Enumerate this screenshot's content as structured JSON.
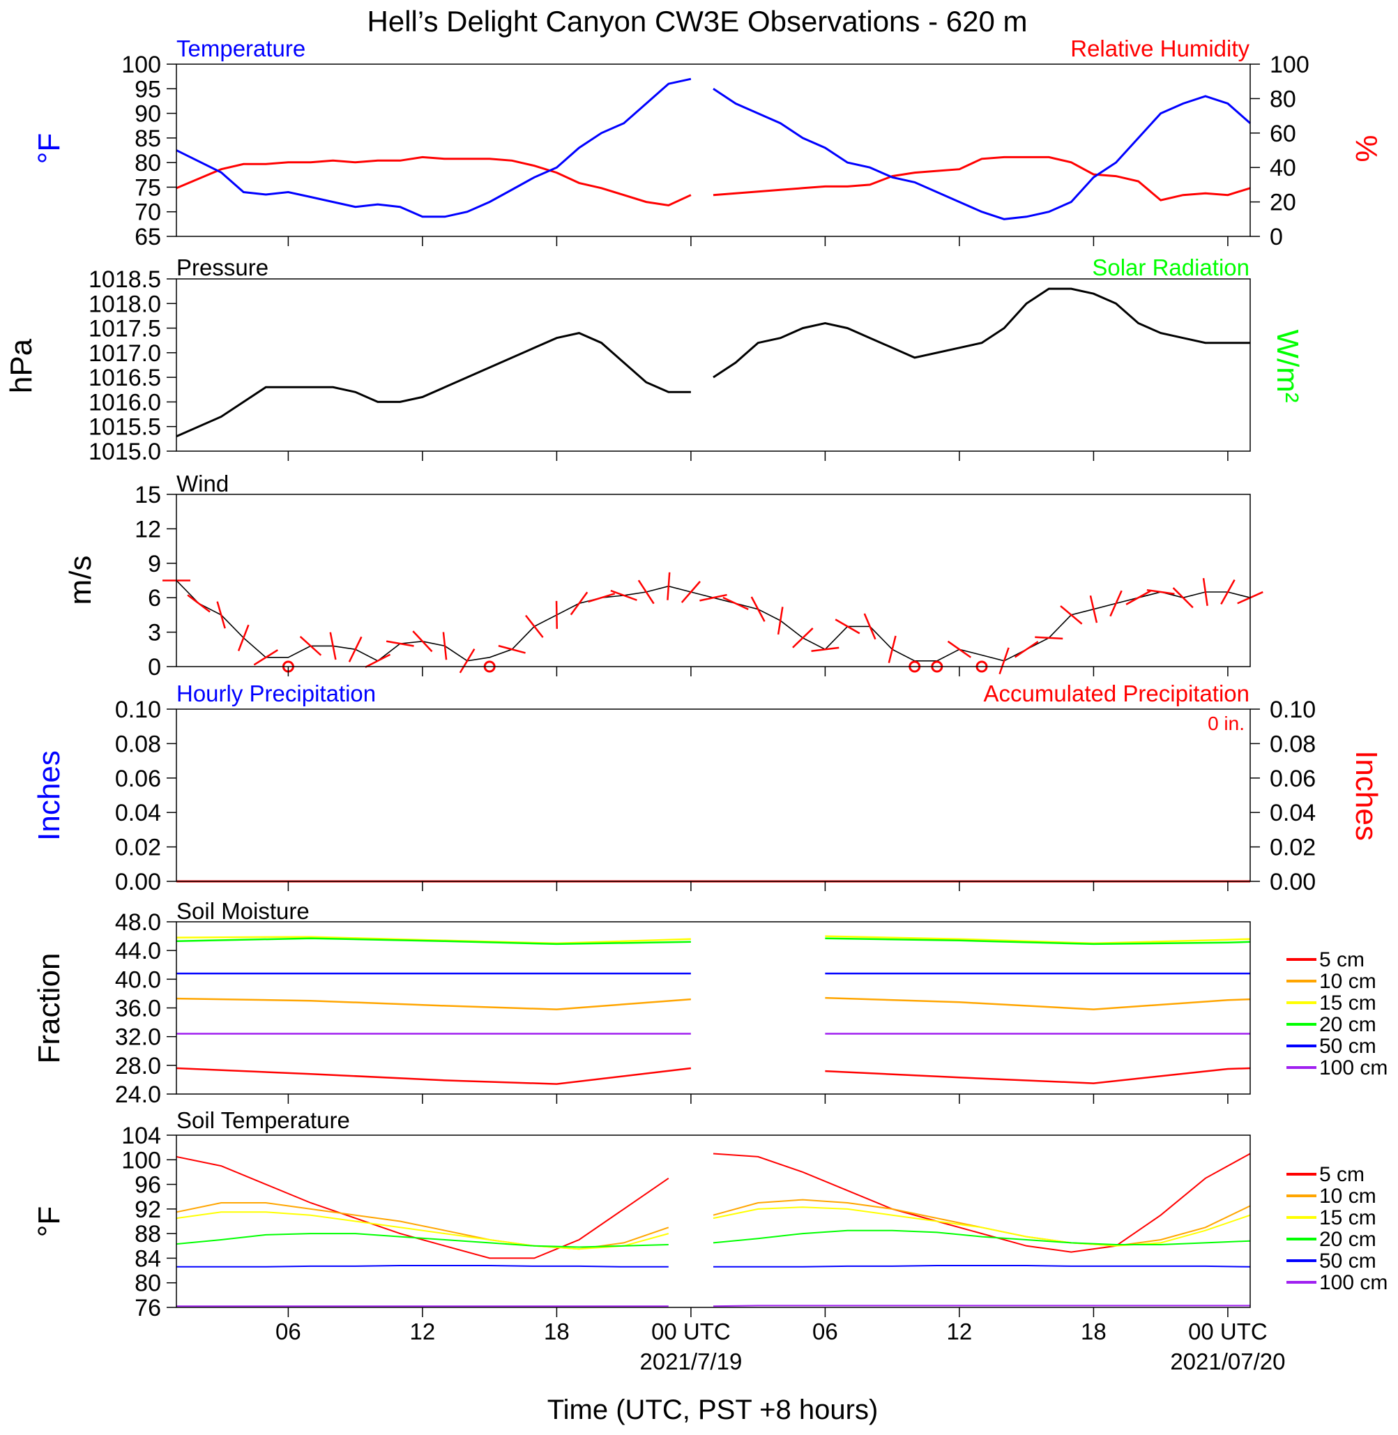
{
  "title": "Hell’s Delight Canyon CW3E Observations - 620 m",
  "x_axis": {
    "label": "Time (UTC, PST +8 hours)",
    "range_hours": [
      0,
      48
    ],
    "ticks": [
      {
        "h": 5,
        "label": "06"
      },
      {
        "h": 11,
        "label": "12"
      },
      {
        "h": 17,
        "label": "18"
      },
      {
        "h": 23,
        "label": "00 UTC"
      },
      {
        "h": 29,
        "label": "06"
      },
      {
        "h": 35,
        "label": "12"
      },
      {
        "h": 41,
        "label": "18"
      },
      {
        "h": 47,
        "label": "00 UTC"
      }
    ],
    "dates": [
      {
        "h": 23,
        "label": "2021/7/19"
      },
      {
        "h": 47,
        "label": "2021/07/20"
      }
    ]
  },
  "panels": {
    "temp": {
      "title_left": "Temperature",
      "title_right": "Relative Humidity",
      "ylabel_left": "°F",
      "ylabel_right": "%",
      "yticks_left": [
        "65",
        "70",
        "75",
        "80",
        "85",
        "90",
        "95",
        "100"
      ],
      "yticks_right": [
        "0",
        "20",
        "40",
        "60",
        "80",
        "100"
      ]
    },
    "pressure": {
      "title_left": "Pressure",
      "title_right": "Solar Radiation",
      "ylabel_left": "hPa",
      "ylabel_right": "W/m²",
      "yticks_left": [
        "1015.0",
        "1015.5",
        "1016.0",
        "1016.5",
        "1017.0",
        "1017.5",
        "1018.0",
        "1018.5"
      ]
    },
    "wind": {
      "title_left": "Wind",
      "ylabel_left": "m/s",
      "yticks_left": [
        "0",
        "3",
        "6",
        "9",
        "12",
        "15"
      ]
    },
    "precip": {
      "title_left": "Hourly Precipitation",
      "title_right": "Accumulated Precipitation",
      "accum_label": "0 in.",
      "ylabel_left": "Inches",
      "ylabel_right": "Inches",
      "yticks": [
        "0.00",
        "0.02",
        "0.04",
        "0.06",
        "0.08",
        "0.10"
      ]
    },
    "soil_moisture": {
      "title_left": "Soil Moisture",
      "ylabel_left": "Fraction",
      "yticks_left": [
        "24.0",
        "28.0",
        "32.0",
        "36.0",
        "40.0",
        "44.0",
        "48.0"
      ]
    },
    "soil_temp": {
      "title_left": "Soil Temperature",
      "ylabel_left": "°F",
      "yticks_left": [
        "76",
        "80",
        "84",
        "88",
        "92",
        "96",
        "100",
        "104"
      ]
    }
  },
  "legend": [
    {
      "label": "5 cm",
      "color": "#ff0000"
    },
    {
      "label": "10 cm",
      "color": "#ffa500"
    },
    {
      "label": "15 cm",
      "color": "#ffff00"
    },
    {
      "label": "20 cm",
      "color": "#00ff00"
    },
    {
      "label": "50 cm",
      "color": "#0000ff"
    },
    {
      "label": "100 cm",
      "color": "#a020f0"
    }
  ],
  "colors": {
    "temp": "#0000ff",
    "rh": "#ff0000",
    "solar": "#00ff00",
    "barb": "#ff0000",
    "wind": "#000000"
  },
  "chart_data": [
    {
      "type": "line",
      "title": "Temperature / Relative Humidity",
      "x_hours": [
        0,
        2,
        3,
        4,
        5,
        6,
        7,
        8,
        9,
        10,
        11,
        12,
        13,
        14,
        15,
        16,
        17,
        18,
        19,
        20,
        21,
        22,
        23,
        24,
        25,
        26,
        27,
        28,
        29,
        30,
        31,
        32,
        33,
        34,
        35,
        36,
        37,
        38,
        39,
        40,
        41,
        42,
        43,
        44,
        45,
        46,
        47,
        48
      ],
      "series": [
        {
          "name": "Temperature",
          "unit": "°F",
          "ylim": [
            65,
            100
          ],
          "values": [
            82.5,
            78,
            74,
            73.5,
            74,
            73,
            72,
            71,
            71.5,
            71,
            69,
            69,
            70,
            72,
            74.5,
            77,
            79,
            83,
            86,
            88,
            92,
            96,
            97,
            95,
            92,
            90,
            88,
            85,
            83,
            80,
            79,
            77,
            76,
            74,
            72,
            70,
            68.5,
            69,
            70,
            72,
            77,
            80,
            85,
            90,
            92,
            93.5,
            92,
            88
          ]
        },
        {
          "name": "Relative Humidity",
          "unit": "%",
          "ylim": [
            0,
            100
          ],
          "values": [
            28,
            39,
            42,
            42,
            43,
            43,
            44,
            43,
            44,
            44,
            46,
            45,
            45,
            45,
            44,
            41,
            37,
            31,
            28,
            24,
            20,
            18,
            24,
            24,
            25,
            26,
            27,
            28,
            29,
            29,
            30,
            35,
            37,
            38,
            39,
            45,
            46,
            46,
            46,
            43,
            36,
            35,
            32,
            21,
            24,
            25,
            24,
            28
          ]
        }
      ]
    },
    {
      "type": "line",
      "title": "Pressure",
      "unit": "hPa",
      "ylim": [
        1015.0,
        1018.5
      ],
      "x_hours": [
        0,
        2,
        3,
        4,
        5,
        6,
        7,
        8,
        9,
        10,
        11,
        12,
        13,
        14,
        15,
        16,
        17,
        18,
        19,
        20,
        21,
        22,
        23,
        24,
        25,
        26,
        27,
        28,
        29,
        30,
        31,
        32,
        33,
        34,
        35,
        36,
        37,
        38,
        39,
        40,
        41,
        42,
        43,
        44,
        45,
        46,
        47,
        48
      ],
      "values": [
        1015.3,
        1015.7,
        1016.0,
        1016.3,
        1016.3,
        1016.3,
        1016.3,
        1016.2,
        1016.0,
        1016.0,
        1016.1,
        1016.3,
        1016.5,
        1016.7,
        1016.9,
        1017.1,
        1017.3,
        1017.4,
        1017.2,
        1016.8,
        1016.4,
        1016.2,
        1016.2,
        1016.5,
        1016.8,
        1017.2,
        1017.3,
        1017.5,
        1017.6,
        1017.5,
        1017.3,
        1017.1,
        1016.9,
        1017.0,
        1017.1,
        1017.2,
        1017.5,
        1018.0,
        1018.3,
        1018.3,
        1018.2,
        1018.0,
        1017.6,
        1017.4,
        1017.3,
        1017.2,
        1017.2,
        1017.2
      ]
    },
    {
      "type": "line",
      "title": "Wind",
      "unit": "m/s",
      "ylim": [
        0,
        15
      ],
      "x_hours": [
        0,
        1,
        2,
        3,
        4,
        5,
        6,
        7,
        8,
        9,
        10,
        11,
        12,
        13,
        14,
        15,
        16,
        17,
        18,
        19,
        20,
        21,
        22,
        23,
        24,
        25,
        26,
        27,
        28,
        29,
        30,
        31,
        32,
        33,
        34,
        35,
        36,
        37,
        38,
        39,
        40,
        41,
        42,
        43,
        44,
        45,
        46,
        47,
        48
      ],
      "values": [
        7.5,
        5.5,
        4.5,
        2.5,
        0.8,
        0.8,
        1.8,
        1.8,
        1.5,
        0.5,
        2,
        2.2,
        1.8,
        0.5,
        0.8,
        1.5,
        3.5,
        4.5,
        5.5,
        6,
        6.2,
        6.5,
        7,
        6.5,
        6,
        5.5,
        5,
        4,
        2.5,
        1.5,
        3.5,
        3.5,
        1.5,
        0.5,
        0.5,
        1.5,
        1,
        0.5,
        1.5,
        2.5,
        4.5,
        5,
        5.5,
        6,
        6.5,
        6,
        6.5,
        6.5,
        6
      ],
      "calm_hours": [
        5,
        14,
        33,
        34,
        36
      ]
    },
    {
      "type": "line",
      "title": "Hourly Precipitation / Accumulated Precipitation",
      "unit": "Inches",
      "ylim": [
        0,
        0.1
      ],
      "x_hours": [
        0,
        48
      ],
      "series": [
        {
          "name": "Hourly Precipitation",
          "values": [
            0,
            0
          ]
        },
        {
          "name": "Accumulated Precipitation",
          "values": [
            0,
            0
          ]
        }
      ]
    },
    {
      "type": "line",
      "title": "Soil Moisture",
      "unit": "Fraction",
      "ylim": [
        24,
        48
      ],
      "x_hours": [
        0,
        6,
        12,
        17,
        23,
        29,
        35,
        41,
        47,
        48
      ],
      "series": [
        {
          "name": "5 cm",
          "values": [
            27.6,
            26.8,
            25.9,
            25.4,
            27.6,
            27.2,
            26.3,
            25.5,
            27.5,
            27.6
          ]
        },
        {
          "name": "10 cm",
          "values": [
            37.3,
            37.0,
            36.3,
            35.8,
            37.2,
            37.4,
            36.8,
            35.8,
            37.1,
            37.2
          ]
        },
        {
          "name": "15 cm",
          "values": [
            45.8,
            45.9,
            45.4,
            45.0,
            45.6,
            46.0,
            45.6,
            45.0,
            45.5,
            45.6
          ]
        },
        {
          "name": "20 cm",
          "values": [
            45.3,
            45.7,
            45.3,
            44.9,
            45.2,
            45.7,
            45.4,
            44.9,
            45.1,
            45.2
          ]
        },
        {
          "name": "50 cm",
          "values": [
            40.8,
            40.8,
            40.8,
            40.8,
            40.8,
            40.8,
            40.8,
            40.8,
            40.8,
            40.8
          ]
        },
        {
          "name": "100 cm",
          "values": [
            32.4,
            32.4,
            32.4,
            32.4,
            32.4,
            32.4,
            32.4,
            32.4,
            32.4,
            32.4
          ]
        }
      ]
    },
    {
      "type": "line",
      "title": "Soil Temperature",
      "unit": "°F",
      "ylim": [
        76,
        104
      ],
      "x_hours": [
        0,
        2,
        4,
        6,
        8,
        10,
        12,
        14,
        16,
        18,
        20,
        22,
        24,
        26,
        28,
        30,
        32,
        34,
        36,
        38,
        40,
        42,
        44,
        46,
        48
      ],
      "series": [
        {
          "name": "5 cm",
          "values": [
            100.5,
            99,
            96,
            93,
            90.5,
            88,
            86,
            84,
            84,
            87,
            92,
            97,
            101,
            100.5,
            98,
            95,
            92,
            90,
            88,
            86,
            85,
            86,
            91,
            97,
            101
          ]
        },
        {
          "name": "10 cm",
          "values": [
            91.5,
            93,
            93,
            92,
            91,
            90,
            88.5,
            87,
            86,
            85.5,
            86.5,
            89,
            91,
            93,
            93.5,
            93,
            92,
            90.5,
            89,
            87.5,
            86.5,
            86,
            87,
            89,
            92.5
          ]
        },
        {
          "name": "15 cm",
          "values": [
            90.5,
            91.5,
            91.5,
            91,
            90,
            89,
            88,
            87,
            86,
            85.5,
            86,
            88,
            90.5,
            92,
            92.3,
            92,
            91,
            90,
            89,
            87.5,
            86.5,
            86,
            86.5,
            88.5,
            91
          ]
        },
        {
          "name": "20 cm",
          "values": [
            86.3,
            87,
            87.8,
            88,
            88,
            87.5,
            87,
            86.5,
            86,
            85.8,
            86,
            86.2,
            86.5,
            87.2,
            88,
            88.5,
            88.5,
            88.2,
            87.5,
            87,
            86.5,
            86.2,
            86.2,
            86.5,
            86.8
          ]
        },
        {
          "name": "50 cm",
          "values": [
            82.6,
            82.6,
            82.6,
            82.7,
            82.7,
            82.8,
            82.8,
            82.8,
            82.7,
            82.7,
            82.6,
            82.6,
            82.6,
            82.6,
            82.6,
            82.7,
            82.7,
            82.8,
            82.8,
            82.8,
            82.7,
            82.7,
            82.7,
            82.7,
            82.6
          ]
        },
        {
          "name": "100 cm",
          "values": [
            76.2,
            76.2,
            76.2,
            76.2,
            76.2,
            76.2,
            76.2,
            76.2,
            76.2,
            76.2,
            76.2,
            76.2,
            76.2,
            76.3,
            76.3,
            76.3,
            76.3,
            76.3,
            76.3,
            76.3,
            76.3,
            76.3,
            76.3,
            76.3,
            76.3
          ]
        }
      ]
    }
  ]
}
